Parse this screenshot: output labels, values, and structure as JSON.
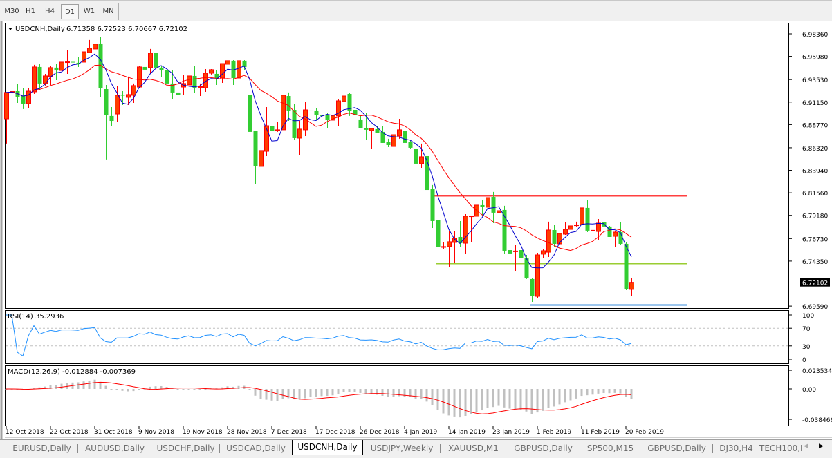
{
  "toolbar": {
    "timeframes": [
      {
        "label": "M30",
        "selected": false
      },
      {
        "label": "H1",
        "selected": false
      },
      {
        "label": "H4",
        "selected": false
      },
      {
        "label": "D1",
        "selected": true
      },
      {
        "label": "W1",
        "selected": false
      },
      {
        "label": "MN",
        "selected": false
      }
    ]
  },
  "chart": {
    "symbol_label": "USDCNH,Daily",
    "ohlc_label": "6.71358 6.72523 6.70667 6.72102",
    "current_price": "6.72102",
    "price_axis": [
      "6.98360",
      "6.95980",
      "6.93530",
      "6.91150",
      "6.88770",
      "6.86320",
      "6.83940",
      "6.81560",
      "6.79180",
      "6.76730",
      "6.74350",
      "6.69590"
    ],
    "date_axis": [
      {
        "bar": 0,
        "label": "12 Oct 2018"
      },
      {
        "bar": 8,
        "label": "22 Oct 2018"
      },
      {
        "bar": 16,
        "label": "31 Oct 2018"
      },
      {
        "bar": 24,
        "label": "9 Nov 2018"
      },
      {
        "bar": 32,
        "label": "19 Nov 2018"
      },
      {
        "bar": 40,
        "label": "28 Nov 2018"
      },
      {
        "bar": 48,
        "label": "7 Dec 2018"
      },
      {
        "bar": 56,
        "label": "17 Dec 2018"
      },
      {
        "bar": 64,
        "label": "26 Dec 2018"
      },
      {
        "bar": 72,
        "label": "4 Jan 2019"
      },
      {
        "bar": 80,
        "label": "14 Jan 2019"
      },
      {
        "bar": 88,
        "label": "23 Jan 2019"
      },
      {
        "bar": 96,
        "label": "1 Feb 2019"
      },
      {
        "bar": 104,
        "label": "11 Feb 2019"
      },
      {
        "bar": 112,
        "label": "20 Feb 2019"
      }
    ],
    "colors": {
      "bull": "#ff3c00",
      "bull_border": "#ff0000",
      "bear": "#32cd32",
      "ma_fast": "#0000cd",
      "ma_slow": "#ff0000",
      "rsi": "#1e90ff",
      "macd_hist": "#c0c0c0",
      "macd_signal": "#ff0000"
    },
    "ma_periods": {
      "fast": 5,
      "slow": 13
    },
    "hlines": [
      {
        "price": 6.8128,
        "from_bar": 77,
        "to_bar": 123,
        "color": "#ff4040"
      },
      {
        "price": 6.7413,
        "from_bar": 78,
        "to_bar": 123,
        "color": "#9acd32"
      },
      {
        "price": 6.6975,
        "from_bar": 95,
        "to_bar": 123,
        "color": "#3c8fdc"
      }
    ],
    "candles": [
      [
        6.8938,
        6.9216,
        6.8676,
        6.9216
      ],
      [
        6.9223,
        6.9252,
        6.9187,
        6.9226
      ],
      [
        6.923,
        6.9303,
        6.9106,
        6.9172
      ],
      [
        6.9179,
        6.9267,
        6.9041,
        6.9099
      ],
      [
        6.9099,
        6.9267,
        6.9055,
        6.923
      ],
      [
        6.9223,
        6.9508,
        6.9201,
        6.9486
      ],
      [
        6.9486,
        6.9522,
        6.9238,
        6.9311
      ],
      [
        6.9311,
        6.9413,
        6.9289,
        6.9391
      ],
      [
        6.9384,
        6.95,
        6.9296,
        6.9479
      ],
      [
        6.9479,
        6.9515,
        6.9347,
        6.9449
      ],
      [
        6.9449,
        6.9552,
        6.9369,
        6.9537
      ],
      [
        6.9537,
        6.9668,
        6.9413,
        6.954
      ],
      [
        6.954,
        6.9763,
        6.9515,
        6.9535
      ],
      [
        6.953,
        6.9595,
        6.9486,
        6.9522
      ],
      [
        6.9537,
        6.9683,
        6.9515,
        6.9646
      ],
      [
        6.9639,
        6.9771,
        6.9632,
        6.9683
      ],
      [
        6.9676,
        6.9792,
        6.9668,
        6.9727
      ],
      [
        6.9734,
        6.98,
        6.9165,
        6.926
      ],
      [
        6.9252,
        6.9296,
        6.8508,
        6.8975
      ],
      [
        6.8968,
        6.9062,
        6.8865,
        6.8916
      ],
      [
        6.8989,
        6.9281,
        6.8909,
        6.9187
      ],
      [
        6.919,
        6.923,
        6.9084,
        6.9185
      ],
      [
        6.9165,
        6.9384,
        6.9084,
        6.9194
      ],
      [
        6.9187,
        6.9311,
        6.9106,
        6.9289
      ],
      [
        6.9274,
        6.95,
        6.926,
        6.9486
      ],
      [
        6.9486,
        6.9537,
        6.9442,
        6.9457
      ],
      [
        6.9479,
        6.9676,
        6.9413,
        6.9632
      ],
      [
        6.9632,
        6.9698,
        6.9435,
        6.9479
      ],
      [
        6.9479,
        6.95,
        6.9376,
        6.9449
      ],
      [
        6.9449,
        6.9486,
        6.9238,
        6.9311
      ],
      [
        6.9311,
        6.9449,
        6.9143,
        6.9216
      ],
      [
        6.9216,
        6.923,
        6.9092,
        6.9187
      ],
      [
        6.9274,
        6.9398,
        6.9194,
        6.9311
      ],
      [
        6.9296,
        6.9457,
        6.923,
        6.9391
      ],
      [
        6.9391,
        6.95,
        6.9208,
        6.9267
      ],
      [
        6.9274,
        6.9311,
        6.9179,
        6.9278
      ],
      [
        6.9267,
        6.9464,
        6.9223,
        6.942
      ],
      [
        6.942,
        6.9464,
        6.9406,
        6.9457
      ],
      [
        6.9413,
        6.9449,
        6.9296,
        6.9362
      ],
      [
        6.9369,
        6.9522,
        6.9318,
        6.9522
      ],
      [
        6.9515,
        6.9581,
        6.9479,
        6.9552
      ],
      [
        6.9552,
        6.9559,
        6.9296,
        6.9369
      ],
      [
        6.9369,
        6.9559,
        6.9311,
        6.9552
      ],
      [
        6.9552,
        6.9559,
        6.9449,
        6.9486
      ],
      [
        6.9187,
        6.9252,
        6.877,
        6.88
      ],
      [
        6.8807,
        6.8814,
        6.8245,
        6.8435
      ],
      [
        6.8435,
        6.8719,
        6.8391,
        6.8603
      ],
      [
        6.8595,
        6.9062,
        6.8544,
        6.8865
      ],
      [
        6.8865,
        6.8953,
        6.8646,
        6.8814
      ],
      [
        6.8814,
        6.8909,
        6.88,
        6.8822
      ],
      [
        6.8822,
        6.9194,
        6.8822,
        6.9187
      ],
      [
        6.9179,
        6.9216,
        6.8916,
        6.9026
      ],
      [
        6.9033,
        6.9092,
        6.8712,
        6.8734
      ],
      [
        6.8734,
        6.8916,
        6.8551,
        6.8829
      ],
      [
        6.8822,
        6.9114,
        6.8756,
        6.9033
      ],
      [
        6.9026,
        6.9033,
        6.8953,
        6.9022
      ],
      [
        6.9026,
        6.9048,
        6.8931,
        6.8982
      ],
      [
        6.8982,
        6.9004,
        6.8858,
        6.8968
      ],
      [
        6.8975,
        6.8997,
        6.8836,
        6.8924
      ],
      [
        6.8924,
        6.915,
        6.8814,
        6.8975
      ],
      [
        6.8968,
        6.915,
        6.8858,
        6.9128
      ],
      [
        6.9121,
        6.9194,
        6.9099,
        6.9179
      ],
      [
        6.9201,
        6.9208,
        6.8968,
        6.9019
      ],
      [
        6.9033,
        6.9055,
        6.8975,
        6.8982
      ],
      [
        6.8931,
        6.8975,
        6.8836,
        6.8836
      ],
      [
        6.8843,
        6.9004,
        6.8712,
        6.8822
      ],
      [
        6.8814,
        6.8836,
        6.8617,
        6.8836
      ],
      [
        6.8829,
        6.8865,
        6.8785,
        6.8792
      ],
      [
        6.88,
        6.8858,
        6.8683,
        6.8683
      ],
      [
        6.869,
        6.8727,
        6.8639,
        6.8661
      ],
      [
        6.8646,
        6.8792,
        6.8581,
        6.877
      ],
      [
        6.8756,
        6.8938,
        6.8727,
        6.8822
      ],
      [
        6.8814,
        6.8836,
        6.8683,
        6.8683
      ],
      [
        6.869,
        6.8712,
        6.8624,
        6.8632
      ],
      [
        6.8624,
        6.8639,
        6.8435,
        6.8464
      ],
      [
        6.8464,
        6.8676,
        6.842,
        6.8537
      ],
      [
        6.8544,
        6.8551,
        6.8113,
        6.8186
      ],
      [
        6.8194,
        6.8238,
        6.7785,
        6.7858
      ],
      [
        6.7865,
        6.7946,
        6.7362,
        6.7581
      ],
      [
        6.7581,
        6.7639,
        6.7559,
        6.7588
      ],
      [
        6.7588,
        6.7756,
        6.7376,
        6.7639
      ],
      [
        6.7632,
        6.7748,
        6.742,
        6.7675
      ],
      [
        6.769,
        6.7858,
        6.7588,
        6.7624
      ],
      [
        6.7624,
        6.7931,
        6.7515,
        6.7909
      ],
      [
        6.7909,
        6.7916,
        6.7639,
        6.7912
      ],
      [
        6.7909,
        6.8055,
        6.7902,
        6.8026
      ],
      [
        6.8026,
        6.8084,
        6.7909,
        6.8004
      ],
      [
        6.8004,
        6.8179,
        6.7982,
        6.8106
      ],
      [
        6.8113,
        6.8165,
        6.7836,
        6.7946
      ],
      [
        6.7946,
        6.8092,
        6.7785,
        6.7967
      ],
      [
        6.7975,
        6.8019,
        6.7508,
        6.7544
      ],
      [
        6.7551,
        6.7566,
        6.7508,
        6.7515
      ],
      [
        6.7537,
        6.7602,
        6.7332,
        6.7541
      ],
      [
        6.7551,
        6.7646,
        6.7456,
        6.7464
      ],
      [
        6.7471,
        6.75,
        6.7245,
        6.7252
      ],
      [
        6.7245,
        6.7259,
        6.7004,
        6.7062
      ],
      [
        6.7062,
        6.7522,
        6.704,
        6.75
      ],
      [
        6.7508,
        6.7566,
        6.7471,
        6.7544
      ],
      [
        6.7529,
        6.7851,
        6.7478,
        6.7763
      ],
      [
        6.7763,
        6.7821,
        6.7581,
        6.7617
      ],
      [
        6.7617,
        6.7748,
        6.7544,
        6.7727
      ],
      [
        6.7719,
        6.7843,
        6.7712,
        6.777
      ],
      [
        6.777,
        6.7938,
        6.7748,
        6.7807
      ],
      [
        6.7814,
        6.7851,
        6.78,
        6.7817
      ],
      [
        6.7821,
        6.8004,
        6.7632,
        6.7997
      ],
      [
        6.7997,
        6.8077,
        6.7741,
        6.7756
      ],
      [
        6.7756,
        6.7792,
        6.7581,
        6.776
      ],
      [
        6.7748,
        6.788,
        6.7661,
        6.7836
      ],
      [
        6.7843,
        6.7931,
        6.7741,
        6.78
      ],
      [
        6.78,
        6.7807,
        6.769,
        6.769
      ],
      [
        6.7697,
        6.7756,
        6.7588,
        6.7741
      ],
      [
        6.7741,
        6.7843,
        6.7602,
        6.7617
      ],
      [
        6.7617,
        6.7639,
        6.7128,
        6.7135
      ],
      [
        6.71358,
        6.72523,
        6.70667,
        6.72102
      ]
    ]
  },
  "rsi": {
    "label": "RSI(14) 35.2936",
    "period": 14,
    "levels": [
      "100",
      "70",
      "30",
      "0"
    ]
  },
  "macd": {
    "label": "MACD(12,26,9) -0.012884 -0.007369",
    "fast": 12,
    "slow": 26,
    "signal": 9,
    "axis": [
      "0.023534",
      "0.00",
      "-0.038466"
    ]
  },
  "tabs": [
    {
      "label": "EURUSD,Daily",
      "active": false
    },
    {
      "label": "AUDUSD,Daily",
      "active": false
    },
    {
      "label": "USDCHF,Daily",
      "active": false
    },
    {
      "label": "USDCAD,Daily",
      "active": false
    },
    {
      "label": "USDCNH,Daily",
      "active": true
    },
    {
      "label": "USDJPY,Weekly",
      "active": false
    },
    {
      "label": "XAUUSD,M1",
      "active": false
    },
    {
      "label": "GBPUSD,Daily",
      "active": false
    },
    {
      "label": "SP500,M15",
      "active": false
    },
    {
      "label": "GBPUSD,Daily",
      "active": false
    },
    {
      "label": "DJ30,H4",
      "active": false
    },
    {
      "label": "TECH100,H",
      "active": false
    }
  ]
}
